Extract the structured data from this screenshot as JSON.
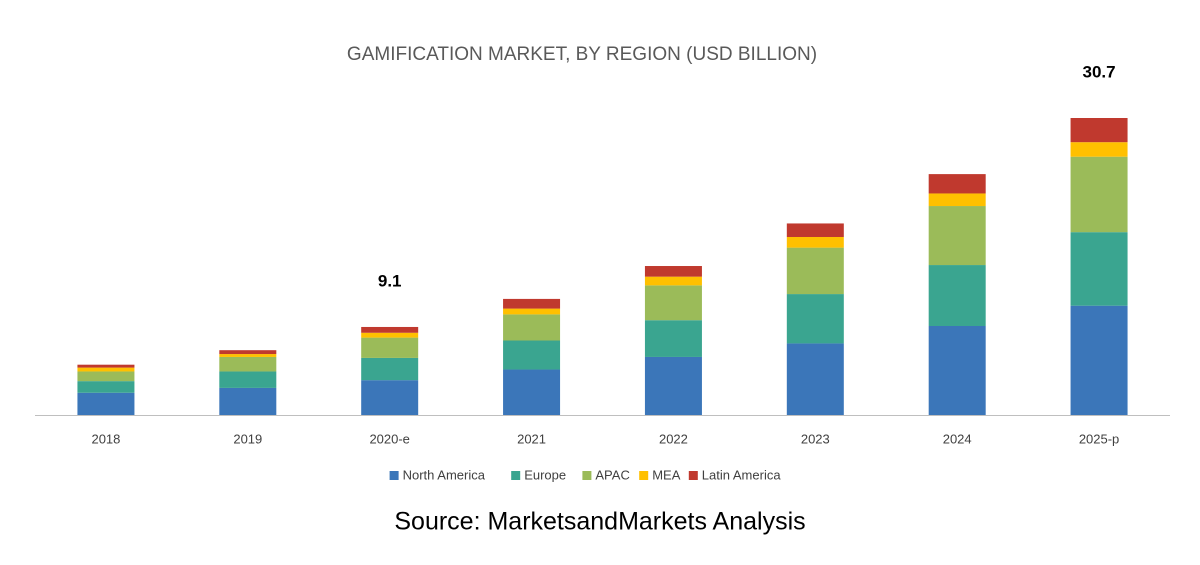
{
  "chart_data": {
    "type": "stacked_bar",
    "title": "GAMIFICATION MARKET, BY REGION (USD BILLION)",
    "categories": [
      "2018",
      "2019",
      "2020-e",
      "2021",
      "2022",
      "2023",
      "2024",
      "2025-p"
    ],
    "series": [
      {
        "name": "North America",
        "color": "#3b76b9",
        "values": [
          2.3,
          2.8,
          3.6,
          4.7,
          6.0,
          7.4,
          9.2,
          11.3
        ]
      },
      {
        "name": "Europe",
        "color": "#3aa590",
        "values": [
          1.2,
          1.7,
          2.3,
          3.0,
          3.8,
          5.1,
          6.3,
          7.6
        ]
      },
      {
        "name": "APAC",
        "color": "#9bbb59",
        "values": [
          1.0,
          1.5,
          2.1,
          2.7,
          3.6,
          4.8,
          6.1,
          7.8
        ]
      },
      {
        "name": "MEA",
        "color": "#ffc000",
        "values": [
          0.4,
          0.3,
          0.5,
          0.6,
          0.9,
          1.1,
          1.3,
          1.5
        ]
      },
      {
        "name": "Latin America",
        "color": "#c0392e",
        "values": [
          0.3,
          0.4,
          0.6,
          1.0,
          1.1,
          1.4,
          2.0,
          2.5
        ]
      }
    ],
    "annotations": [
      {
        "category": "2020-e",
        "value": 9.1
      },
      {
        "category": "2025-p",
        "value": 30.7
      }
    ],
    "legend": "bottom",
    "source": "Source: MarketsandMarkets Analysis"
  }
}
